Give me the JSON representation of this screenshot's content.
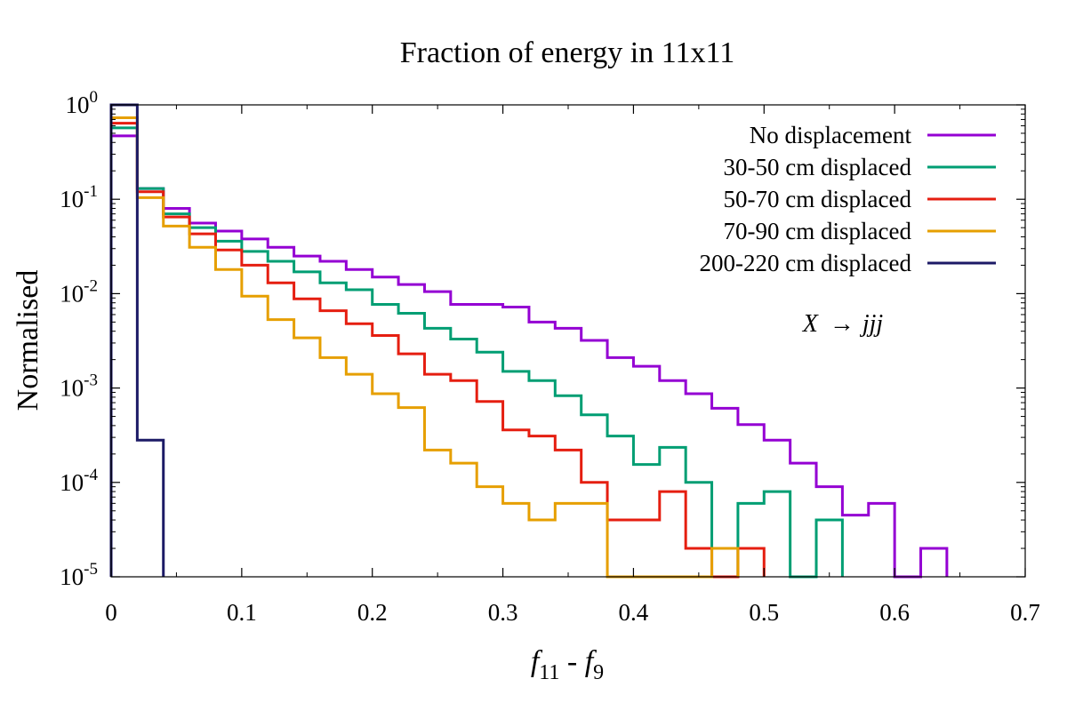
{
  "chart_data": {
    "type": "histogram",
    "title": "Fraction of energy in 11x11",
    "xlabel": {
      "base": "f",
      "sub1": "11",
      "sep": " - ",
      "base2": "f",
      "sub2": "9"
    },
    "ylabel": "Normalised",
    "xlim": [
      0,
      0.7
    ],
    "ylim": [
      1e-05,
      1
    ],
    "yscale": "log",
    "x_ticks": [
      "0",
      "0.1",
      "0.2",
      "0.3",
      "0.4",
      "0.5",
      "0.6",
      "0.7"
    ],
    "x_tick_values": [
      0,
      0.1,
      0.2,
      0.3,
      0.4,
      0.5,
      0.6,
      0.7
    ],
    "y_ticks": [
      {
        "base": "10",
        "exp": "0",
        "value": 1
      },
      {
        "base": "10",
        "exp": "-1",
        "value": 0.1
      },
      {
        "base": "10",
        "exp": "-2",
        "value": 0.01
      },
      {
        "base": "10",
        "exp": "-3",
        "value": 0.001
      },
      {
        "base": "10",
        "exp": "-4",
        "value": 0.0001
      },
      {
        "base": "10",
        "exp": "-5",
        "value": 1e-05
      }
    ],
    "bin_width": 0.02,
    "annotation": {
      "text": "X",
      "arrow": "→",
      "text2": "jjj"
    },
    "legend_position": "top-right",
    "series": [
      {
        "name": "No displacement",
        "color": "#9400d3",
        "values": [
          0.47,
          0.13,
          0.08,
          0.056,
          0.046,
          0.038,
          0.031,
          0.025,
          0.022,
          0.018,
          0.015,
          0.0125,
          0.0105,
          0.0077,
          0.0077,
          0.0072,
          0.005,
          0.0043,
          0.0032,
          0.0021,
          0.0017,
          0.0012,
          0.00087,
          0.00061,
          0.00041,
          0.00028,
          0.00016,
          9e-05,
          4.5e-05,
          6e-05,
          1e-05,
          2e-05
        ]
      },
      {
        "name": "30-50 cm displaced",
        "color": "#009e73",
        "values": [
          0.57,
          0.13,
          0.07,
          0.05,
          0.036,
          0.028,
          0.022,
          0.017,
          0.013,
          0.011,
          0.0077,
          0.0062,
          0.0043,
          0.0033,
          0.0024,
          0.0015,
          0.0012,
          0.00083,
          0.00052,
          0.00031,
          0.000155,
          0.000235,
          0.0001,
          1e-05,
          6e-05,
          8e-05,
          1e-05,
          4e-05
        ]
      },
      {
        "name": "50-70 cm displaced",
        "color": "#e51e10",
        "values": [
          0.64,
          0.12,
          0.065,
          0.043,
          0.029,
          0.02,
          0.013,
          0.0088,
          0.0066,
          0.0048,
          0.0036,
          0.0023,
          0.0014,
          0.0012,
          0.00072,
          0.00036,
          0.00031,
          0.00022,
          0.0001,
          4e-05,
          4e-05,
          8e-05,
          2e-05,
          1e-05,
          2e-05
        ]
      },
      {
        "name": "70-90 cm displaced",
        "color": "#e69f00",
        "values": [
          0.73,
          0.104,
          0.052,
          0.031,
          0.018,
          0.0094,
          0.0053,
          0.0034,
          0.0021,
          0.0014,
          0.00087,
          0.00062,
          0.00022,
          0.00016,
          9e-05,
          6e-05,
          4e-05,
          6e-05,
          6e-05,
          1e-05,
          1e-05,
          1e-05,
          1e-05,
          2e-05
        ]
      },
      {
        "name": "200-220 cm displaced",
        "color": "#1c1a66",
        "values": [
          1.0,
          0.00028
        ]
      }
    ]
  }
}
